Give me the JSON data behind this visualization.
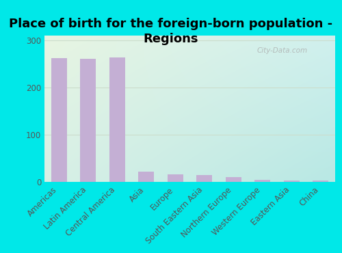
{
  "categories": [
    "Americas",
    "Latin America",
    "Central America",
    "Asia",
    "Europe",
    "South Eastern Asia",
    "Northern Europe",
    "Western Europe",
    "Eastern Asia",
    "China"
  ],
  "values": [
    262,
    260,
    263,
    22,
    17,
    15,
    10,
    5,
    4,
    4
  ],
  "bar_color": "#c4afd4",
  "title_line1": "Place of birth for the foreign-born population -",
  "title_line2": "Regions",
  "title_fontsize": 13,
  "title_fontweight": "bold",
  "background_outer": "#00e8e8",
  "bg_top_left": "#e8f5e2",
  "bg_bottom_right": "#b8e8e4",
  "ylim": [
    0,
    310
  ],
  "yticks": [
    0,
    100,
    200,
    300
  ],
  "tick_label_color": "#555555",
  "axis_label_fontsize": 8.5,
  "watermark": "City-Data.com",
  "grid_color": "#ccddcc"
}
